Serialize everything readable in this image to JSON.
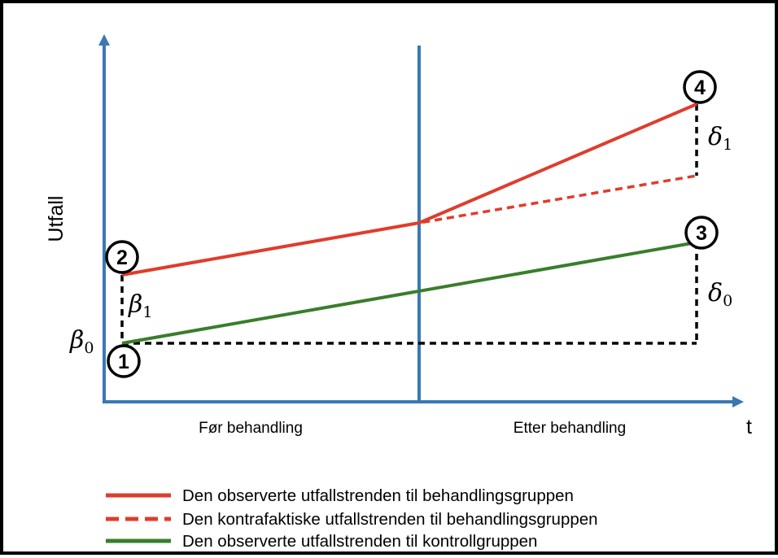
{
  "diagram": {
    "y_axis_label": "Utfall",
    "x_axis_label": "t",
    "period_labels": {
      "before": "Før behandling",
      "after": "Etter behandling"
    },
    "points": [
      "1",
      "2",
      "3",
      "4"
    ],
    "symbols": {
      "beta0": "β",
      "beta0_sub": "0",
      "beta1": "β",
      "beta1_sub": "1",
      "delta0": "δ",
      "delta0_sub": "0",
      "delta1": "δ",
      "delta1_sub": "1"
    },
    "colors": {
      "axis": "#3a78b5",
      "treatment": "#e03c2c",
      "control": "#3a7d2c",
      "dashed": "#000000"
    }
  },
  "legend": {
    "items": [
      {
        "label": "Den observerte utfallstrenden til behandlingsgruppen",
        "style": "solid",
        "color": "#e03c2c"
      },
      {
        "label": "Den kontrafaktiske utfallstrenden til behandlingsgruppen",
        "style": "dashed",
        "color": "#e03c2c"
      },
      {
        "label": "Den observerte utfallstrenden til kontrollgruppen",
        "style": "solid",
        "color": "#3a7d2c"
      }
    ]
  }
}
